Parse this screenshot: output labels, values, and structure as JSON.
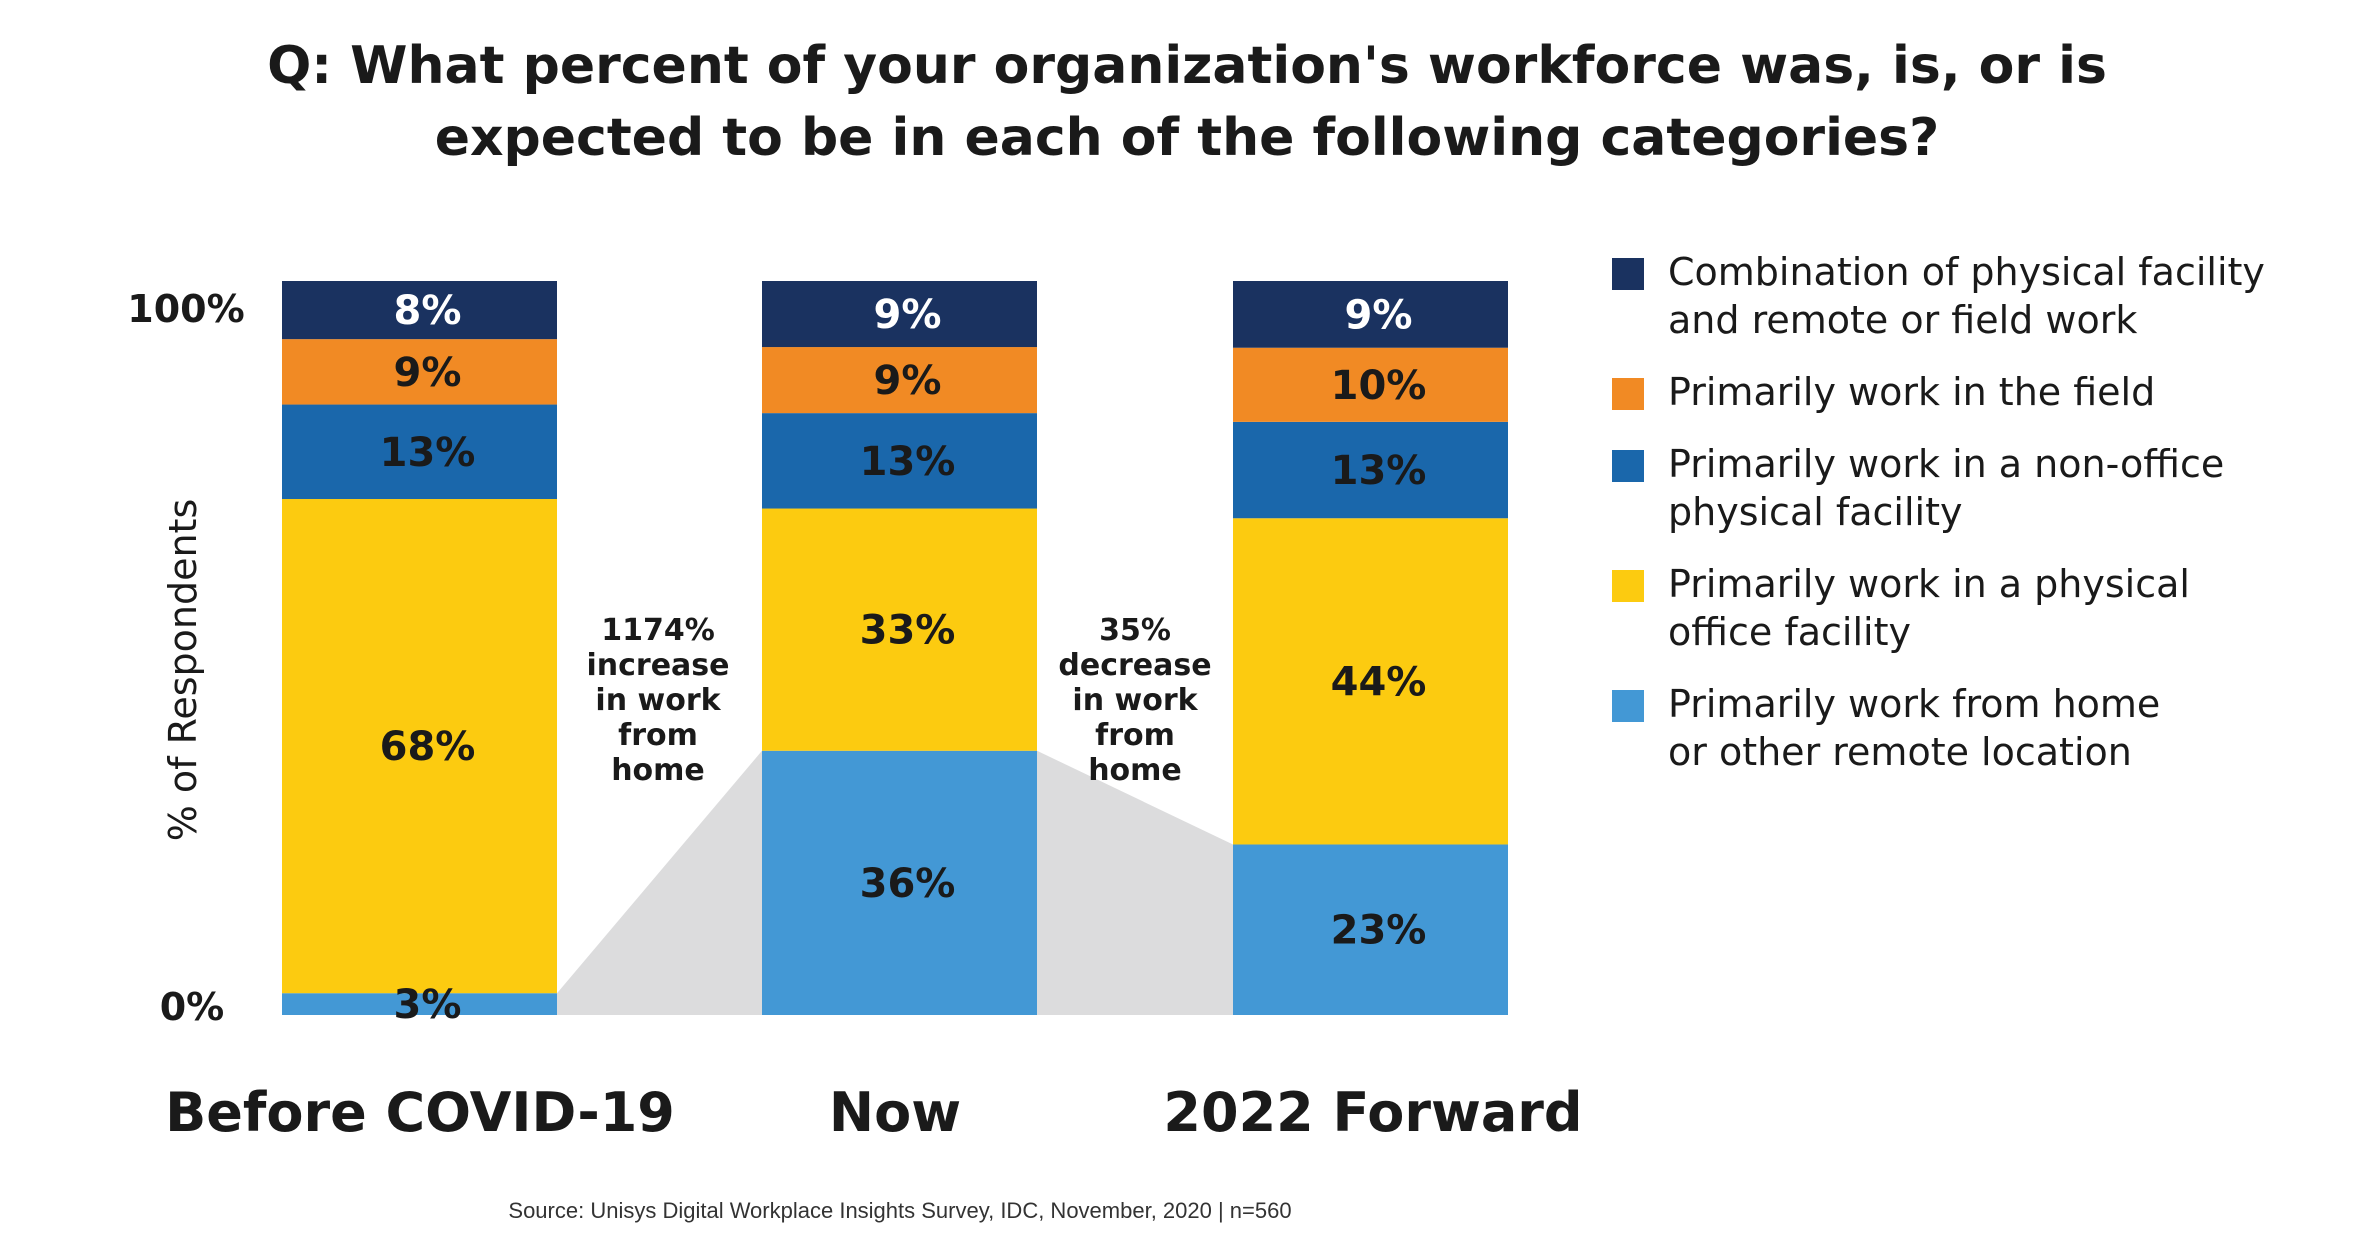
{
  "title_lines": [
    "Q: What percent of your organization's workforce was, is, or is",
    "expected to be in each of the following categories?"
  ],
  "source": "Source: Unisys Digital Workplace Insights Survey, IDC, November, 2020  |  n=560",
  "chart_data": {
    "type": "bar",
    "stacked": true,
    "title": "Q: What percent of your organization's workforce was, is, or is expected to be in each of the following categories?",
    "xlabel": "",
    "ylabel": "% of Respondents",
    "ylim": [
      0,
      100
    ],
    "y_tick_labels": [
      "0%",
      "100%"
    ],
    "categories": [
      "Before COVID-19",
      "Now",
      "2022 Forward"
    ],
    "series": [
      {
        "name": "Primarily work from home or other remote location",
        "color": "#4398d5",
        "values": [
          3,
          36,
          23
        ],
        "labels": [
          "3%",
          "36%",
          "23%"
        ]
      },
      {
        "name": "Primarily work in a physical office facility",
        "color": "#fccb10",
        "values": [
          68,
          33,
          44
        ],
        "labels": [
          "68%",
          "33%",
          "44%"
        ]
      },
      {
        "name": "Primarily work in a non-office physical facility",
        "color": "#1a67ab",
        "values": [
          13,
          13,
          13
        ],
        "labels": [
          "13%",
          "13%",
          "13%"
        ]
      },
      {
        "name": "Primarily work in the field",
        "color": "#f18a24",
        "values": [
          9,
          9,
          10
        ],
        "labels": [
          "9%",
          "9%",
          "10%"
        ]
      },
      {
        "name": "Combination of physical facility and remote or field work",
        "color": "#1a3260",
        "values": [
          8,
          9,
          9
        ],
        "labels": [
          "8%",
          "9%",
          "9%"
        ]
      }
    ],
    "legend": {
      "position": "right",
      "items": [
        {
          "lines": [
            "Combination of physical facility",
            "and remote or field work"
          ],
          "color": "#1a3260"
        },
        {
          "lines": [
            "Primarily work in the field"
          ],
          "color": "#f18a24"
        },
        {
          "lines": [
            "Primarily work in a non-office",
            "physical facility"
          ],
          "color": "#1a67ab"
        },
        {
          "lines": [
            "Primarily work in a physical",
            "office facility"
          ],
          "color": "#fccb10"
        },
        {
          "lines": [
            "Primarily work from home",
            "or other remote location"
          ],
          "color": "#4398d5"
        }
      ]
    },
    "annotations": [
      {
        "lines": [
          "1174%",
          "increase",
          "in work",
          "from",
          "home"
        ]
      },
      {
        "lines": [
          "35%",
          "decrease",
          "in work",
          "from",
          "home"
        ]
      }
    ],
    "connector_color": "#dcdcdd"
  }
}
